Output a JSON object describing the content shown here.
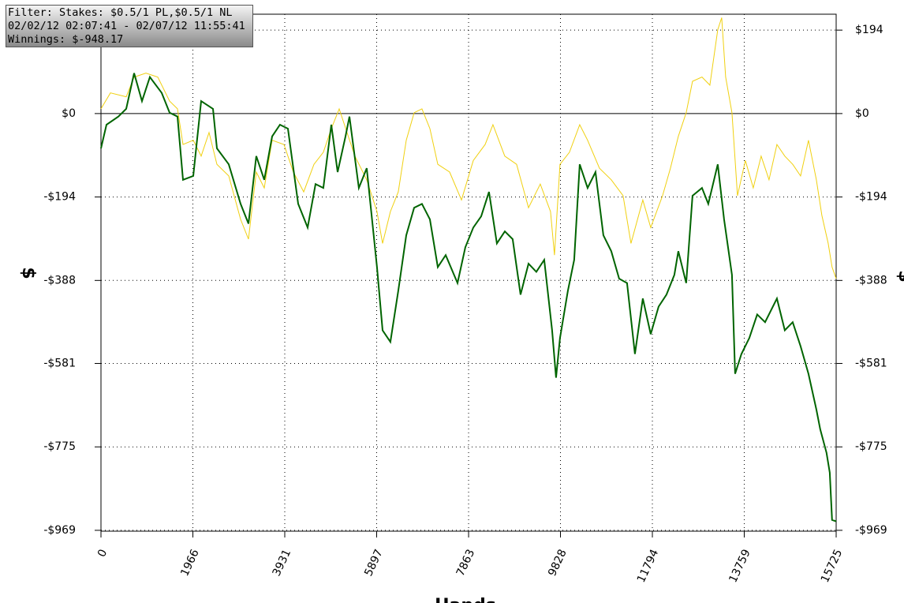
{
  "chart_data": {
    "type": "line",
    "info_lines": [
      "Filter: Stakes: $0.5/1 PL,$0.5/1 NL",
      "02/02/12 02:07:41 - 02/07/12 11:55:41",
      "Winnings: $-948.17"
    ],
    "ylabel": "$",
    "xlabel": "Hands",
    "xlim": [
      0,
      15725
    ],
    "xticks": [
      0,
      1966,
      3931,
      5897,
      7863,
      9828,
      11794,
      13759,
      15725
    ],
    "ylim": [
      -971,
      231
    ],
    "yticks": [
      {
        "value": 194,
        "label": "$194"
      },
      {
        "value": 0,
        "label": "$0"
      },
      {
        "value": -194,
        "label": "-$194"
      },
      {
        "value": -388,
        "label": "-$388"
      },
      {
        "value": -581,
        "label": "-$581"
      },
      {
        "value": -775,
        "label": "-$775"
      },
      {
        "value": -969,
        "label": "-$969"
      }
    ],
    "y2lim": [
      -971,
      231
    ],
    "y2ticks": [
      {
        "value": 194,
        "label": "$194"
      },
      {
        "value": 0,
        "label": "$0"
      },
      {
        "value": -194,
        "label": "-$194"
      },
      {
        "value": -388,
        "label": "-$388"
      },
      {
        "value": -581,
        "label": "-$581"
      },
      {
        "value": -775,
        "label": "-$775"
      },
      {
        "value": -969,
        "label": "-$969"
      }
    ],
    "grid": true,
    "series": [
      {
        "color": "#f0d010",
        "width": 1,
        "x": [
          0,
          202,
          540,
          709,
          962,
          1215,
          1468,
          1636,
          1754,
          1974,
          2142,
          2311,
          2480,
          2733,
          2986,
          3155,
          3323,
          3492,
          3661,
          3914,
          4116,
          4336,
          4555,
          4757,
          4926,
          5095,
          5263,
          5432,
          5685,
          5904,
          6023,
          6191,
          6360,
          6529,
          6698,
          6866,
          7035,
          7204,
          7457,
          7710,
          7963,
          8216,
          8384,
          8637,
          8890,
          9144,
          9397,
          9616,
          9700,
          9818,
          10021,
          10240,
          10409,
          10662,
          10915,
          11168,
          11337,
          11590,
          11758,
          12011,
          12180,
          12349,
          12518,
          12653,
          12855,
          13024,
          13192,
          13277,
          13361,
          13496,
          13614,
          13783,
          13952,
          14120,
          14289,
          14458,
          14626,
          14795,
          14964,
          15132,
          15301,
          15419,
          15554,
          15638,
          15725
        ],
        "values": [
          11,
          48,
          39,
          85,
          94,
          85,
          29,
          11,
          -72,
          -62,
          -99,
          -44,
          -118,
          -145,
          -246,
          -292,
          -136,
          -173,
          -62,
          -72,
          -136,
          -182,
          -118,
          -90,
          -35,
          11,
          -44,
          -99,
          -154,
          -228,
          -302,
          -228,
          -182,
          -62,
          2,
          11,
          -35,
          -118,
          -136,
          -201,
          -109,
          -72,
          -26,
          -99,
          -118,
          -219,
          -164,
          -228,
          -329,
          -118,
          -90,
          -26,
          -62,
          -127,
          -154,
          -191,
          -302,
          -201,
          -265,
          -191,
          -127,
          -53,
          2,
          75,
          85,
          66,
          195,
          223,
          85,
          2,
          -191,
          -109,
          -173,
          -99,
          -154,
          -72,
          -99,
          -118,
          -145,
          -62,
          -154,
          -237,
          -302,
          -357,
          -384
        ]
      },
      {
        "color": "#006400",
        "width": 2,
        "x": [
          0,
          118,
          371,
          540,
          709,
          877,
          1046,
          1299,
          1468,
          1636,
          1754,
          1974,
          2142,
          2396,
          2480,
          2733,
          2986,
          3155,
          3323,
          3492,
          3661,
          3829,
          3998,
          4218,
          4420,
          4589,
          4757,
          4926,
          5061,
          5230,
          5314,
          5516,
          5685,
          5904,
          6023,
          6191,
          6360,
          6529,
          6698,
          6866,
          7035,
          7204,
          7373,
          7626,
          7794,
          7963,
          8132,
          8300,
          8469,
          8638,
          8806,
          8975,
          9144,
          9312,
          9481,
          9650,
          9734,
          9818,
          9987,
          10122,
          10240,
          10409,
          10577,
          10746,
          10915,
          11083,
          11252,
          11421,
          11590,
          11758,
          11927,
          12096,
          12264,
          12349,
          12518,
          12653,
          12855,
          12990,
          13192,
          13327,
          13496,
          13563,
          13698,
          13867,
          14036,
          14205,
          14458,
          14626,
          14795,
          14964,
          15132,
          15301,
          15385,
          15520,
          15588,
          15638,
          15725
        ],
        "values": [
          -81,
          -26,
          -7,
          11,
          94,
          29,
          85,
          48,
          2,
          -7,
          -154,
          -145,
          29,
          11,
          -81,
          -118,
          -210,
          -256,
          -99,
          -154,
          -53,
          -26,
          -35,
          -210,
          -265,
          -164,
          -173,
          -26,
          -136,
          -53,
          -7,
          -173,
          -127,
          -357,
          -504,
          -531,
          -412,
          -283,
          -219,
          -210,
          -246,
          -357,
          -329,
          -394,
          -311,
          -265,
          -239,
          -182,
          -302,
          -274,
          -292,
          -421,
          -349,
          -368,
          -340,
          -504,
          -614,
          -522,
          -412,
          -340,
          -118,
          -173,
          -136,
          -283,
          -320,
          -384,
          -394,
          -559,
          -430,
          -513,
          -449,
          -421,
          -375,
          -320,
          -394,
          -191,
          -173,
          -210,
          -118,
          -246,
          -375,
          -605,
          -559,
          -522,
          -467,
          -485,
          -430,
          -504,
          -485,
          -541,
          -605,
          -688,
          -734,
          -789,
          -835,
          -945,
          -948
        ]
      }
    ]
  }
}
